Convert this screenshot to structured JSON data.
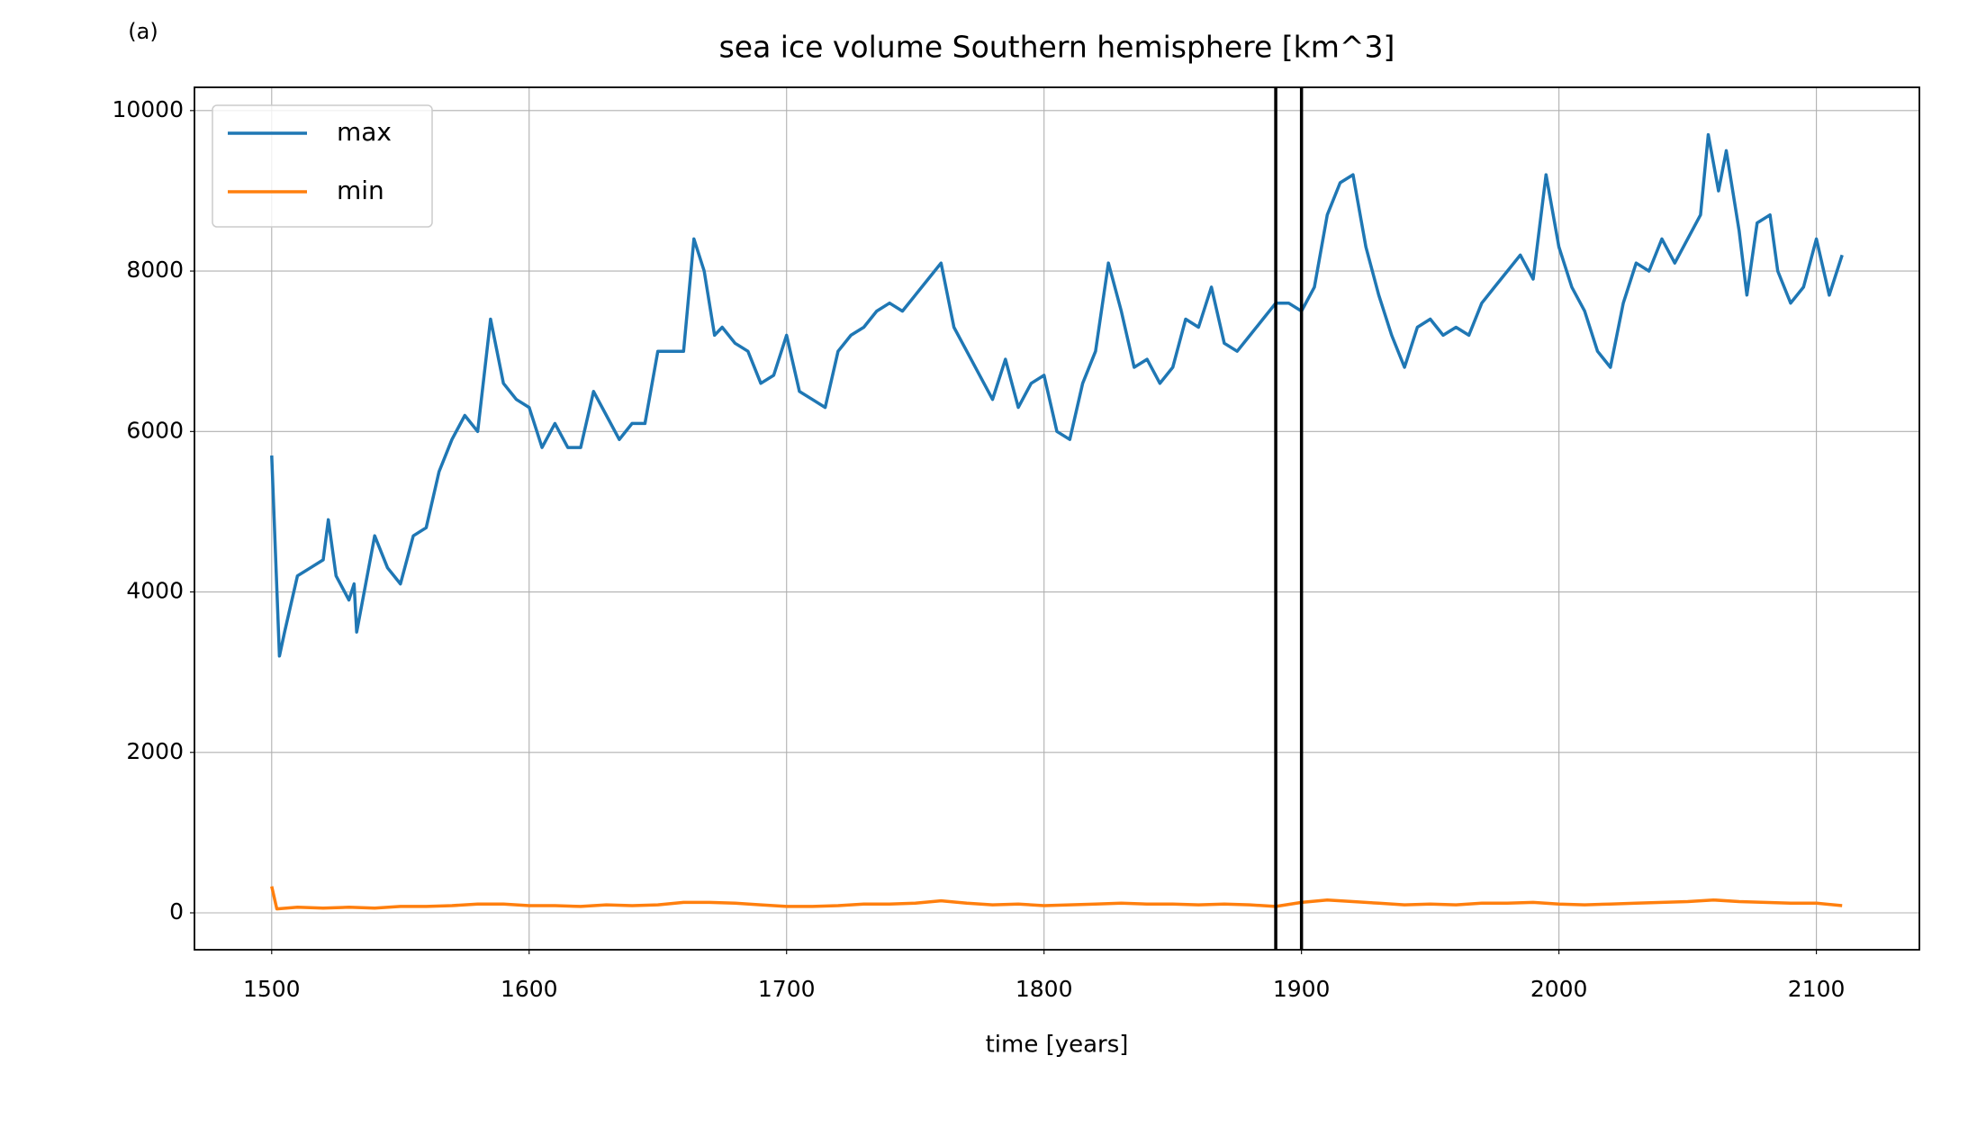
{
  "chart_data": {
    "type": "line",
    "annotation": "(a)",
    "title": "sea ice volume Southern hemisphere [km^3]",
    "x_label": "time [years]",
    "xlim": [
      1470,
      2140
    ],
    "ylim": [
      -460,
      10290
    ],
    "xticks": [
      1500,
      1600,
      1700,
      1800,
      1900,
      2000,
      2100
    ],
    "yticks": [
      0,
      2000,
      4000,
      6000,
      8000,
      10000
    ],
    "grid": true,
    "legend": "upper left",
    "vlines": [
      1890,
      1900
    ],
    "vline_color": "#000000",
    "series": [
      {
        "name": "max",
        "color": "#1f77b4",
        "x": [
          1500,
          1503,
          1505,
          1510,
          1515,
          1520,
          1522,
          1525,
          1530,
          1532,
          1533,
          1540,
          1545,
          1550,
          1555,
          1560,
          1565,
          1570,
          1575,
          1580,
          1585,
          1590,
          1595,
          1600,
          1605,
          1610,
          1615,
          1620,
          1625,
          1630,
          1635,
          1640,
          1645,
          1650,
          1655,
          1660,
          1664,
          1668,
          1672,
          1675,
          1680,
          1685,
          1690,
          1695,
          1700,
          1705,
          1710,
          1715,
          1720,
          1725,
          1730,
          1735,
          1740,
          1745,
          1750,
          1755,
          1760,
          1765,
          1770,
          1775,
          1780,
          1785,
          1790,
          1795,
          1800,
          1805,
          1810,
          1815,
          1820,
          1825,
          1830,
          1835,
          1840,
          1845,
          1850,
          1855,
          1860,
          1865,
          1870,
          1875,
          1880,
          1885,
          1890,
          1895,
          1900,
          1905,
          1910,
          1915,
          1920,
          1925,
          1930,
          1935,
          1940,
          1945,
          1950,
          1955,
          1960,
          1965,
          1970,
          1975,
          1980,
          1985,
          1990,
          1995,
          2000,
          2005,
          2010,
          2015,
          2020,
          2025,
          2030,
          2035,
          2040,
          2045,
          2050,
          2055,
          2058,
          2062,
          2065,
          2070,
          2073,
          2077,
          2082,
          2085,
          2090,
          2095,
          2100,
          2105,
          2110
        ],
        "values": [
          5700,
          3200,
          3500,
          4200,
          4300,
          4400,
          4900,
          4200,
          3900,
          4100,
          3500,
          4700,
          4300,
          4100,
          4700,
          4800,
          5500,
          5900,
          6200,
          6000,
          7400,
          6600,
          6400,
          6300,
          5800,
          6100,
          5800,
          5800,
          6500,
          6200,
          5900,
          6100,
          6100,
          7000,
          7000,
          7000,
          8400,
          8000,
          7200,
          7300,
          7100,
          7000,
          6600,
          6700,
          7200,
          6500,
          6400,
          6300,
          7000,
          7200,
          7300,
          7500,
          7600,
          7500,
          7700,
          7900,
          8100,
          7300,
          7000,
          6700,
          6400,
          6900,
          6300,
          6600,
          6700,
          6000,
          5900,
          6600,
          7000,
          8100,
          7500,
          6800,
          6900,
          6600,
          6800,
          7400,
          7300,
          7800,
          7100,
          7000,
          7200,
          7400,
          7600,
          7600,
          7500,
          7800,
          8700,
          9100,
          9200,
          8300,
          7700,
          7200,
          6800,
          7300,
          7400,
          7200,
          7300,
          7200,
          7600,
          7800,
          8000,
          8200,
          7900,
          9200,
          8300,
          7800,
          7500,
          7000,
          6800,
          7600,
          8100,
          8000,
          8400,
          8100,
          8400,
          8700,
          9700,
          9000,
          9500,
          8500,
          7700,
          8600,
          8700,
          8000,
          7600,
          7800,
          8400,
          7700,
          8200
        ]
      },
      {
        "name": "min",
        "color": "#ff7f0e",
        "x": [
          1500,
          1502,
          1510,
          1520,
          1530,
          1540,
          1550,
          1560,
          1570,
          1580,
          1590,
          1600,
          1610,
          1620,
          1630,
          1640,
          1650,
          1660,
          1670,
          1680,
          1690,
          1700,
          1710,
          1720,
          1730,
          1740,
          1750,
          1760,
          1770,
          1780,
          1790,
          1800,
          1810,
          1820,
          1830,
          1840,
          1850,
          1860,
          1870,
          1880,
          1890,
          1900,
          1910,
          1920,
          1930,
          1940,
          1950,
          1960,
          1970,
          1980,
          1990,
          2000,
          2010,
          2020,
          2030,
          2040,
          2050,
          2060,
          2070,
          2080,
          2090,
          2100,
          2110
        ],
        "values": [
          330,
          50,
          70,
          60,
          70,
          60,
          80,
          80,
          90,
          110,
          110,
          90,
          90,
          80,
          100,
          90,
          100,
          130,
          130,
          120,
          100,
          80,
          80,
          90,
          110,
          110,
          120,
          150,
          120,
          100,
          110,
          90,
          100,
          110,
          120,
          110,
          110,
          100,
          110,
          100,
          80,
          130,
          160,
          140,
          120,
          100,
          110,
          100,
          120,
          120,
          130,
          110,
          100,
          110,
          120,
          130,
          140,
          160,
          140,
          130,
          120,
          120,
          90
        ]
      }
    ]
  }
}
